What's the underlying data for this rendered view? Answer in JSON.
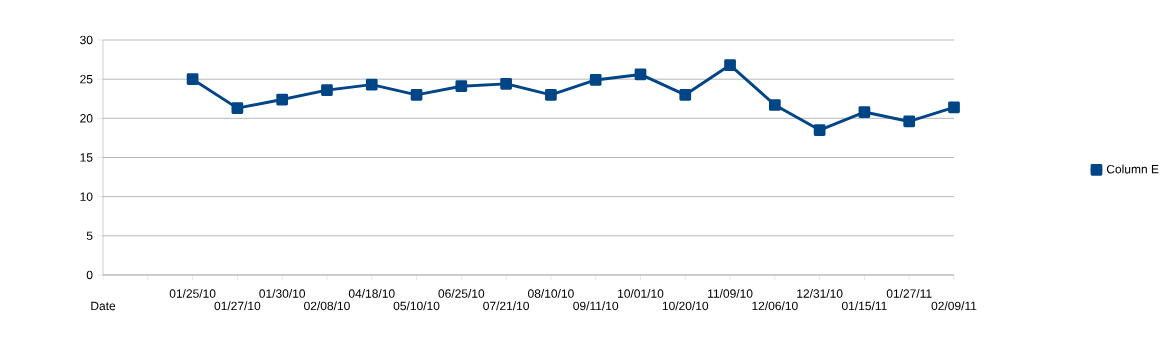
{
  "chart_data": {
    "type": "line",
    "categories": [
      "Date",
      null,
      "01/25/10",
      "01/27/10",
      "01/30/10",
      "02/08/10",
      "04/18/10",
      "05/10/10",
      "06/25/10",
      "07/21/10",
      "08/10/10",
      "09/11/10",
      "10/01/10",
      "10/20/10",
      "11/09/10",
      "12/06/10",
      "12/31/10",
      "01/15/11",
      "01/27/11",
      "02/09/11"
    ],
    "series": [
      {
        "name": "Column E",
        "color": "#004586",
        "values": [
          null,
          null,
          25.0,
          21.3,
          22.4,
          23.6,
          24.3,
          23.0,
          24.1,
          24.4,
          23.0,
          24.9,
          25.6,
          23.0,
          26.8,
          21.7,
          18.5,
          20.8,
          19.6,
          21.4
        ]
      }
    ],
    "ylim": [
      0,
      30
    ],
    "yticks": [
      0,
      5,
      10,
      15,
      20,
      25,
      30
    ],
    "grid": "y",
    "legend": "right",
    "marker": "square",
    "line_style": "solid"
  }
}
